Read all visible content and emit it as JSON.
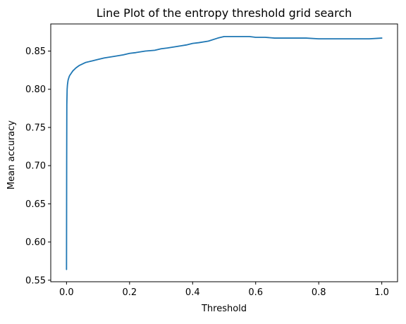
{
  "chart_data": {
    "type": "line",
    "title": "Line Plot of the entropy threshold grid search",
    "xlabel": "Threshold",
    "ylabel": "Mean accuracy",
    "xlim": [
      -0.05,
      1.05
    ],
    "ylim": [
      0.548,
      0.8855
    ],
    "xticks": [
      0.0,
      0.2,
      0.4,
      0.6,
      0.8,
      1.0
    ],
    "xtick_labels": [
      "0.0",
      "0.2",
      "0.4",
      "0.6",
      "0.8",
      "1.0"
    ],
    "yticks": [
      0.55,
      0.6,
      0.65,
      0.7,
      0.75,
      0.8,
      0.85
    ],
    "ytick_labels": [
      "0.55",
      "0.60",
      "0.65",
      "0.70",
      "0.75",
      "0.80",
      "0.85"
    ],
    "grid": false,
    "colors": {
      "line": "#1f77b4",
      "axes": "#000000",
      "background": "#ffffff"
    },
    "series": [
      {
        "x": [
          0.0,
          0.0005,
          0.001,
          0.002,
          0.003,
          0.005,
          0.008,
          0.01,
          0.015,
          0.02,
          0.03,
          0.04,
          0.05,
          0.06,
          0.08,
          0.1,
          0.12,
          0.15,
          0.18,
          0.2,
          0.22,
          0.25,
          0.28,
          0.3,
          0.32,
          0.35,
          0.38,
          0.4,
          0.42,
          0.45,
          0.48,
          0.5,
          0.52,
          0.55,
          0.58,
          0.6,
          0.63,
          0.66,
          0.7,
          0.73,
          0.76,
          0.8,
          0.83,
          0.86,
          0.9,
          0.93,
          0.96,
          1.0
        ],
        "y": [
          0.564,
          0.7,
          0.78,
          0.8,
          0.806,
          0.812,
          0.816,
          0.818,
          0.821,
          0.824,
          0.828,
          0.831,
          0.833,
          0.835,
          0.837,
          0.839,
          0.841,
          0.843,
          0.845,
          0.847,
          0.848,
          0.85,
          0.851,
          0.853,
          0.854,
          0.856,
          0.858,
          0.86,
          0.861,
          0.863,
          0.867,
          0.869,
          0.869,
          0.869,
          0.869,
          0.868,
          0.868,
          0.867,
          0.867,
          0.867,
          0.867,
          0.866,
          0.866,
          0.866,
          0.866,
          0.866,
          0.866,
          0.867
        ]
      }
    ]
  }
}
